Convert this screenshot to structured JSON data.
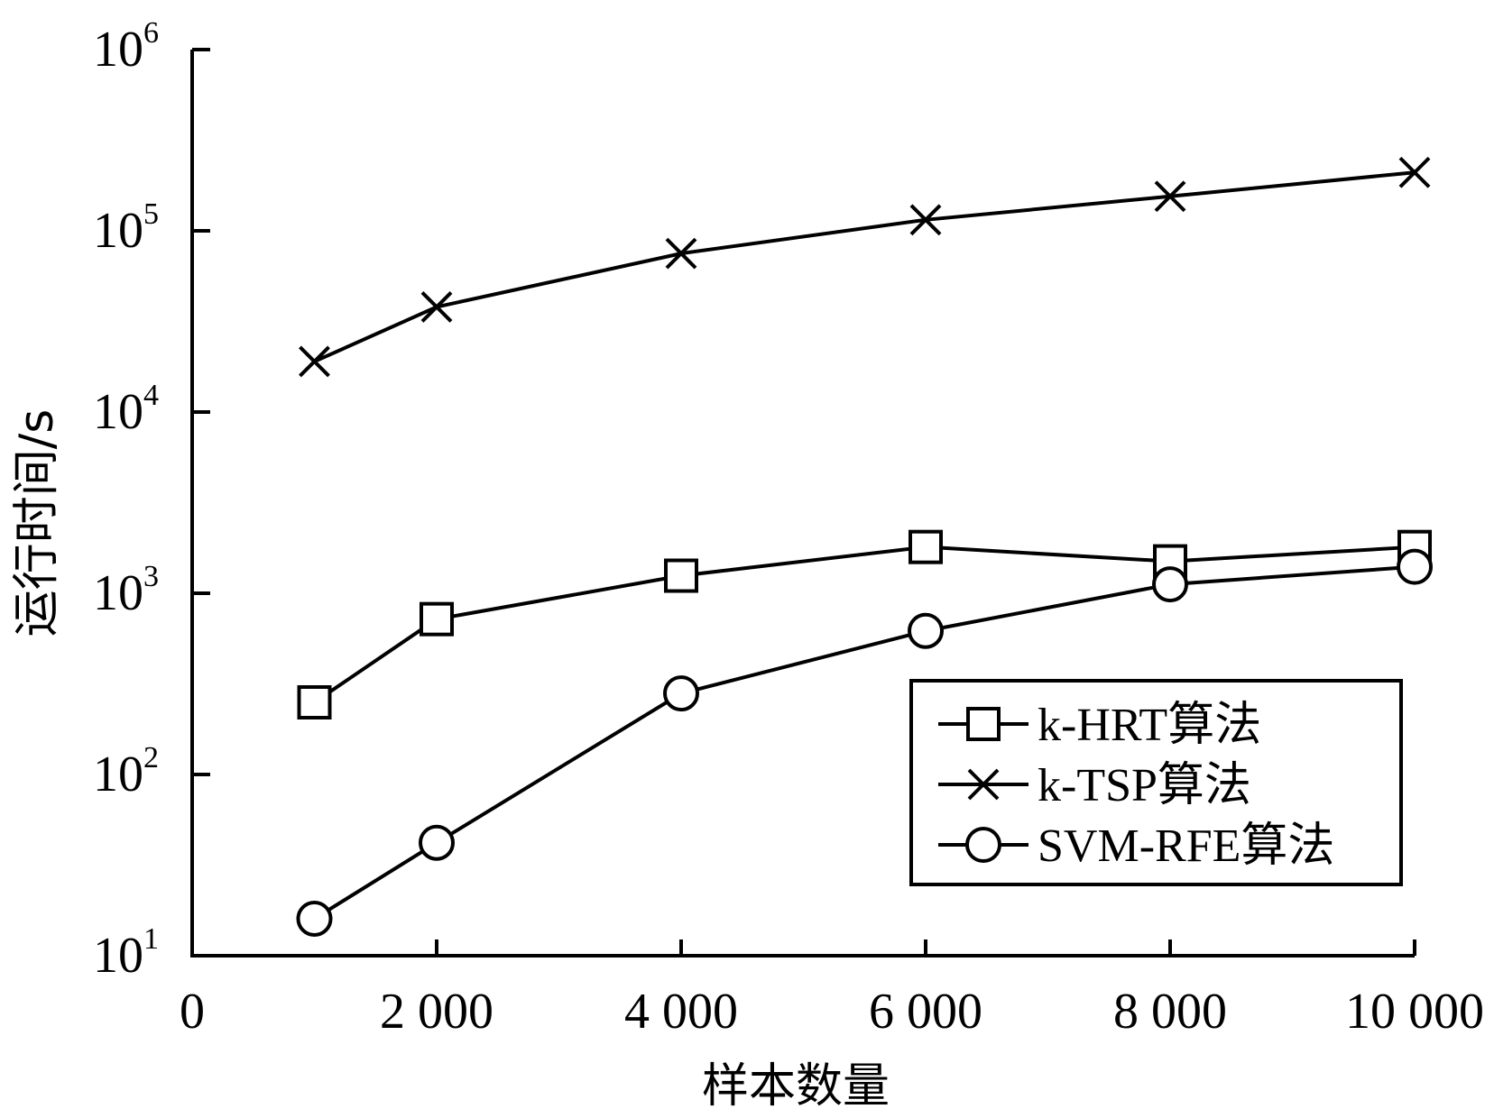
{
  "chart_data": {
    "type": "line",
    "xlabel": "样本数量",
    "ylabel": "运行时间/s",
    "xlim": [
      0,
      10000
    ],
    "ylim": [
      10,
      1000000
    ],
    "yscale": "log",
    "x_ticks": [
      {
        "value": 0,
        "label": "0"
      },
      {
        "value": 2000,
        "label": "2 000"
      },
      {
        "value": 4000,
        "label": "4 000"
      },
      {
        "value": 6000,
        "label": "6 000"
      },
      {
        "value": 8000,
        "label": "8 000"
      },
      {
        "value": 10000,
        "label": "10 000"
      }
    ],
    "y_ticks": [
      {
        "value": 10,
        "base": "10",
        "exp": "1"
      },
      {
        "value": 100,
        "base": "10",
        "exp": "2"
      },
      {
        "value": 1000,
        "base": "10",
        "exp": "3"
      },
      {
        "value": 10000,
        "base": "10",
        "exp": "4"
      },
      {
        "value": 100000,
        "base": "10",
        "exp": "5"
      },
      {
        "value": 1000000,
        "base": "10",
        "exp": "6"
      }
    ],
    "x": [
      1000,
      2000,
      4000,
      6000,
      8000,
      10000
    ],
    "series": [
      {
        "name": "k-HRT算法",
        "marker": "square",
        "values": [
          250,
          720,
          1250,
          1800,
          1500,
          1800
        ]
      },
      {
        "name": "k-TSP算法",
        "marker": "x",
        "values": [
          19000,
          38000,
          75000,
          115000,
          155000,
          210000
        ]
      },
      {
        "name": "SVM-RFE算法",
        "marker": "circle",
        "values": [
          16,
          42,
          280,
          620,
          1120,
          1400
        ]
      }
    ],
    "legend_position": "bottom-right",
    "grid": false
  }
}
